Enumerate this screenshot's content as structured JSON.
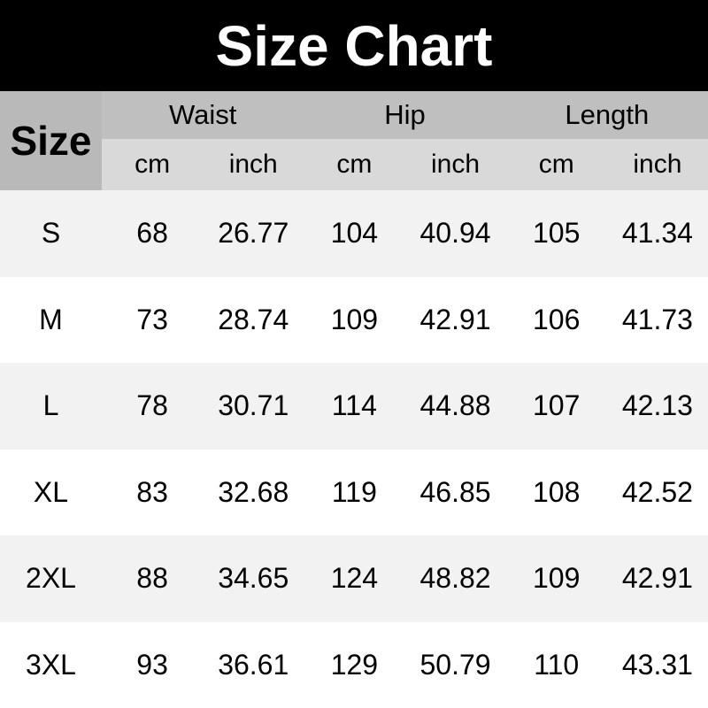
{
  "title": "Size Chart",
  "colors": {
    "banner_bg": "#000000",
    "banner_text": "#ffffff",
    "size_cell_bg": "#b9b9b9",
    "group_row_bg": "#bfbfbf",
    "unit_row_bg": "#d9d9d9",
    "stripe_row_bg": "#f2f2f2",
    "plain_row_bg": "#ffffff",
    "text": "#000000"
  },
  "table": {
    "size_header": "Size",
    "groups": [
      {
        "label": "Waist"
      },
      {
        "label": "Hip"
      },
      {
        "label": "Length"
      }
    ],
    "unit_labels": [
      "cm",
      "inch",
      "cm",
      "inch",
      "cm",
      "inch"
    ],
    "rows": [
      {
        "size": "S",
        "values": [
          "68",
          "26.77",
          "104",
          "40.94",
          "105",
          "41.34"
        ]
      },
      {
        "size": "M",
        "values": [
          "73",
          "28.74",
          "109",
          "42.91",
          "106",
          "41.73"
        ]
      },
      {
        "size": "L",
        "values": [
          "78",
          "30.71",
          "114",
          "44.88",
          "107",
          "42.13"
        ]
      },
      {
        "size": "XL",
        "values": [
          "83",
          "32.68",
          "119",
          "46.85",
          "108",
          "42.52"
        ]
      },
      {
        "size": "2XL",
        "values": [
          "88",
          "34.65",
          "124",
          "48.82",
          "109",
          "42.91"
        ]
      },
      {
        "size": "3XL",
        "values": [
          "93",
          "36.61",
          "129",
          "50.79",
          "110",
          "43.31"
        ]
      }
    ]
  },
  "chart_data": {
    "type": "table",
    "title": "Size Chart",
    "columns": [
      "Size",
      "Waist cm",
      "Waist inch",
      "Hip cm",
      "Hip inch",
      "Length cm",
      "Length inch"
    ],
    "rows": [
      [
        "S",
        68,
        26.77,
        104,
        40.94,
        105,
        41.34
      ],
      [
        "M",
        73,
        28.74,
        109,
        42.91,
        106,
        41.73
      ],
      [
        "L",
        78,
        30.71,
        114,
        44.88,
        107,
        42.13
      ],
      [
        "XL",
        83,
        32.68,
        119,
        46.85,
        108,
        42.52
      ],
      [
        "2XL",
        88,
        34.65,
        124,
        48.82,
        109,
        42.91
      ],
      [
        "3XL",
        93,
        36.61,
        129,
        50.79,
        110,
        43.31
      ]
    ]
  }
}
